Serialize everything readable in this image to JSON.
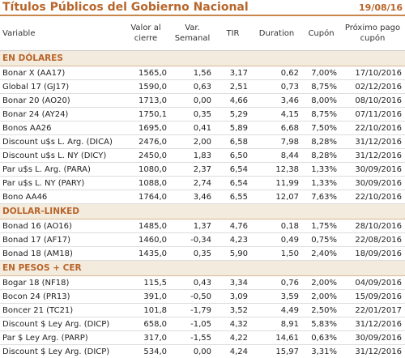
{
  "header": {
    "title": "Títulos Públicos del Gobierno Nacional",
    "date": "19/08/16"
  },
  "columns": [
    "Variable",
    "Valor al cierre",
    "Var. Semanal",
    "TIR",
    "Duration",
    "Cupón",
    "Próximo pago cupón"
  ],
  "sections": [
    {
      "title": "EN DÓLARES",
      "rows": [
        [
          "Bonar X (AA17)",
          "1565,0",
          "1,56",
          "3,17",
          "0,62",
          "7,00%",
          "17/10/2016"
        ],
        [
          "Global 17 (GJ17)",
          "1590,0",
          "0,63",
          "2,51",
          "0,73",
          "8,75%",
          "02/12/2016"
        ],
        [
          "Bonar 20 (AO20)",
          "1713,0",
          "0,00",
          "4,66",
          "3,46",
          "8,00%",
          "08/10/2016"
        ],
        [
          "Bonar 24 (AY24)",
          "1750,1",
          "0,35",
          "5,29",
          "4,15",
          "8,75%",
          "07/11/2016"
        ],
        [
          "Bonos AA26",
          "1695,0",
          "0,41",
          "5,89",
          "6,68",
          "7,50%",
          "22/10/2016"
        ],
        [
          "Discount u$s L. Arg. (DICA)",
          "2476,0",
          "2,00",
          "6,58",
          "7,98",
          "8,28%",
          "31/12/2016"
        ],
        [
          "Discount u$s L. NY (DICY)",
          "2450,0",
          "1,83",
          "6,50",
          "8,44",
          "8,28%",
          "31/12/2016"
        ],
        [
          "Par u$s L. Arg. (PARA)",
          "1080,0",
          "2,37",
          "6,54",
          "12,38",
          "1,33%",
          "30/09/2016"
        ],
        [
          "Par u$s L. NY (PARY)",
          "1088,0",
          "2,74",
          "6,54",
          "11,99",
          "1,33%",
          "30/09/2016"
        ],
        [
          "Bono AA46",
          "1764,0",
          "3,46",
          "6,55",
          "12,07",
          "7,63%",
          "22/10/2016"
        ]
      ]
    },
    {
      "title": "DOLLAR-LINKED",
      "rows": [
        [
          "Bonad 16 (AO16)",
          "1485,0",
          "1,37",
          "4,76",
          "0,18",
          "1,75%",
          "28/10/2016"
        ],
        [
          "Bonad 17 (AF17)",
          "1460,0",
          "-0,34",
          "4,23",
          "0,49",
          "0,75%",
          "22/08/2016"
        ],
        [
          "Bonad 18 (AM18)",
          "1435,0",
          "0,35",
          "5,90",
          "1,50",
          "2,40%",
          "18/09/2016"
        ]
      ]
    },
    {
      "title": "EN PESOS + CER",
      "rows": [
        [
          "Bogar 18 (NF18)",
          "115,5",
          "0,43",
          "3,34",
          "0,76",
          "2,00%",
          "04/09/2016"
        ],
        [
          "Bocon 24 (PR13)",
          "391,0",
          "-0,50",
          "3,09",
          "3,59",
          "2,00%",
          "15/09/2016"
        ],
        [
          "Boncer 21 (TC21)",
          "101,8",
          "-1,79",
          "3,52",
          "4,49",
          "2,50%",
          "22/01/2017"
        ],
        [
          "Discount $ Ley Arg. (DICP)",
          "658,0",
          "-1,05",
          "4,32",
          "8,91",
          "5,83%",
          "31/12/2016"
        ],
        [
          "Par $ Ley Arg. (PARP)",
          "317,0",
          "-1,55",
          "4,22",
          "14,61",
          "0,63%",
          "30/09/2016"
        ],
        [
          "Discount $ Ley Arg. (DICP)",
          "534,0",
          "0,00",
          "4,24",
          "15,97",
          "3,31%",
          "31/12/2016"
        ]
      ]
    }
  ]
}
